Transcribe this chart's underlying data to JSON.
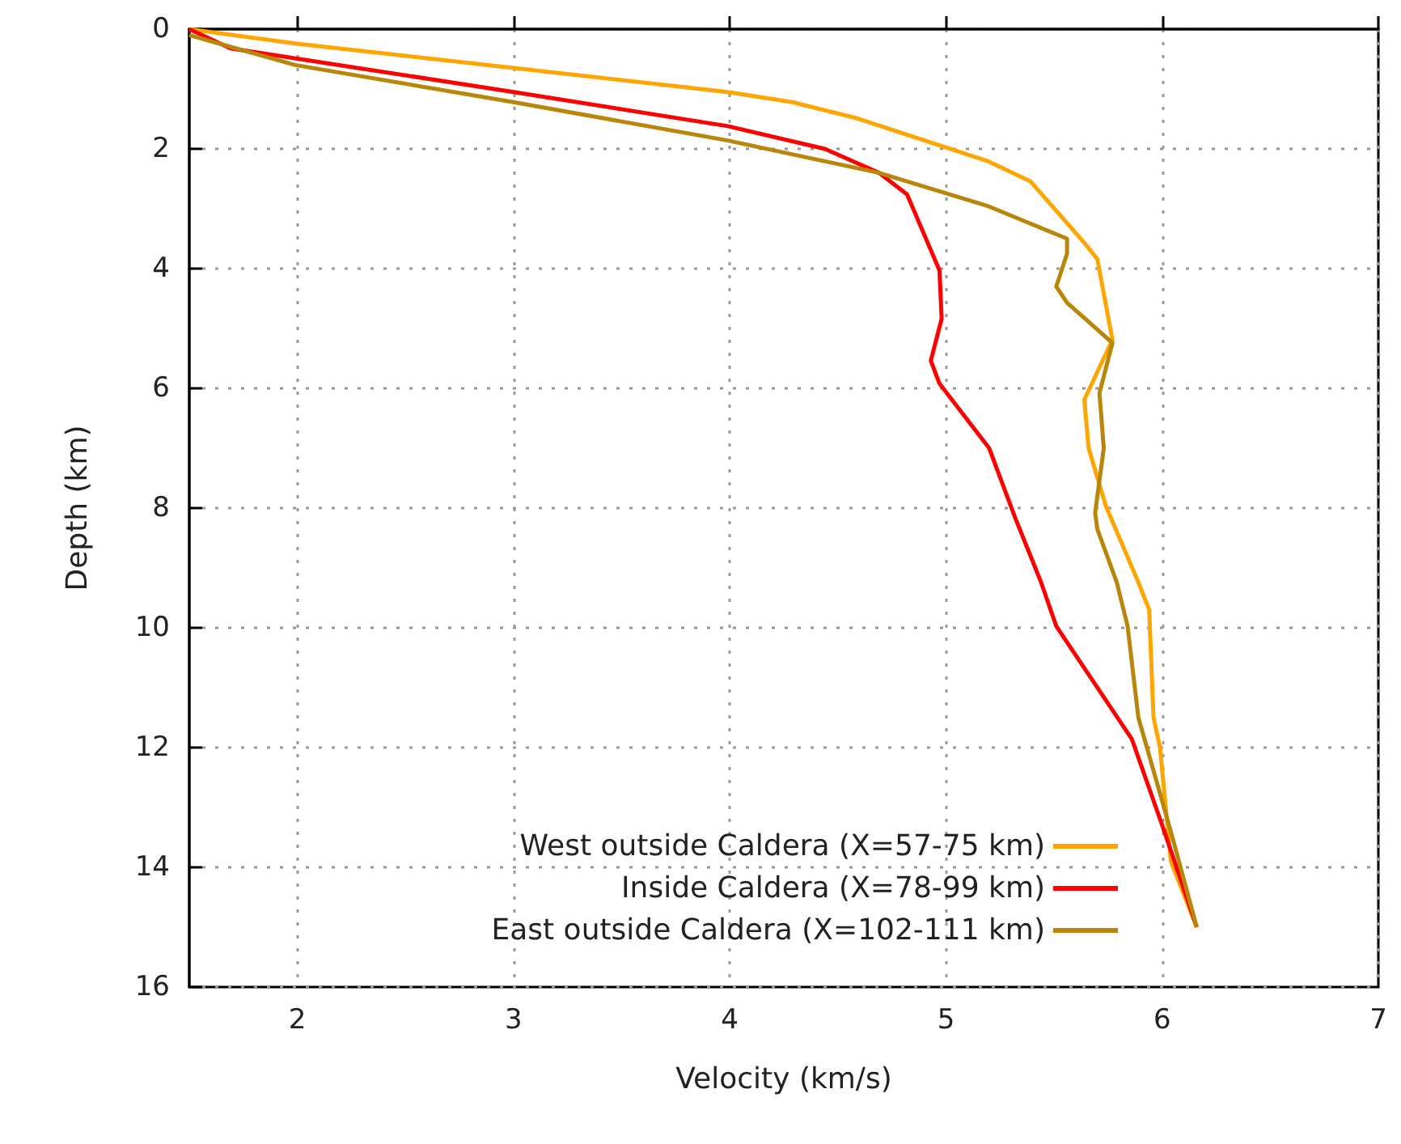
{
  "chart_data": {
    "type": "line",
    "xlabel": "Velocity (km/s)",
    "ylabel": "Depth (km)",
    "xlim": [
      1.5,
      7
    ],
    "xticks": [
      2,
      3,
      4,
      5,
      6,
      7
    ],
    "ylim": [
      16,
      0
    ],
    "yticks": [
      0,
      2,
      4,
      6,
      8,
      10,
      12,
      14,
      16
    ],
    "grid": true,
    "legend": "bottom right",
    "line_style": "solid",
    "series": [
      {
        "name": "West outside Caldera (X=57-75 km)",
        "color": "#ffa500",
        "x": [
          1.5,
          1.99,
          3.0,
          3.99,
          4.29,
          4.59,
          5.19,
          5.39,
          5.64,
          5.7,
          5.77,
          5.64,
          5.66,
          5.74,
          5.89,
          5.94,
          5.96,
          5.99,
          6.03,
          6.04,
          6.16
        ],
        "values": [
          0,
          0.24,
          0.65,
          1.05,
          1.22,
          1.49,
          2.2,
          2.54,
          3.57,
          3.84,
          5.19,
          6.19,
          7.0,
          7.97,
          9.24,
          9.7,
          11.5,
          12.0,
          13.5,
          13.9,
          15.0
        ]
      },
      {
        "name": "Inside Caldera (X=78-99 km)",
        "color": "#ff0000",
        "x": [
          1.5,
          1.69,
          3.0,
          3.99,
          4.44,
          4.69,
          4.82,
          4.97,
          4.98,
          4.93,
          4.97,
          5.2,
          5.32,
          5.44,
          5.51,
          5.86,
          6.01,
          6.16
        ],
        "values": [
          0,
          0.32,
          1.05,
          1.62,
          2.0,
          2.4,
          2.76,
          4.03,
          4.84,
          5.54,
          5.92,
          7.0,
          8.16,
          9.24,
          9.97,
          11.86,
          13.4,
          15.0
        ]
      },
      {
        "name": "East outside Caldera (X=102-111 km)",
        "color": "#b8860b",
        "x": [
          1.5,
          1.99,
          3.0,
          3.99,
          4.69,
          5.19,
          5.56,
          5.56,
          5.51,
          5.56,
          5.77,
          5.71,
          5.73,
          5.69,
          5.7,
          5.79,
          5.84,
          5.89,
          6.04,
          6.16
        ],
        "values": [
          0.1,
          0.6,
          1.22,
          1.86,
          2.4,
          2.95,
          3.5,
          3.75,
          4.3,
          4.57,
          5.24,
          6.08,
          7.0,
          8.08,
          8.35,
          9.24,
          9.97,
          11.5,
          13.4,
          15.0
        ]
      }
    ]
  }
}
